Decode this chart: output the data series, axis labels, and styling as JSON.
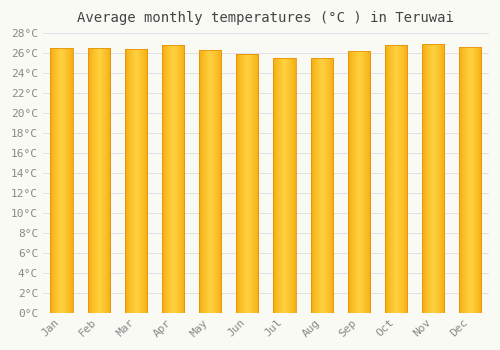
{
  "title": "Average monthly temperatures (°C ) in Teruwai",
  "months": [
    "Jan",
    "Feb",
    "Mar",
    "Apr",
    "May",
    "Jun",
    "Jul",
    "Aug",
    "Sep",
    "Oct",
    "Nov",
    "Dec"
  ],
  "values": [
    26.5,
    26.5,
    26.4,
    26.8,
    26.3,
    25.9,
    25.5,
    25.5,
    26.2,
    26.8,
    26.9,
    26.6
  ],
  "ylim": [
    0,
    28
  ],
  "yticks": [
    0,
    2,
    4,
    6,
    8,
    10,
    12,
    14,
    16,
    18,
    20,
    22,
    24,
    26,
    28
  ],
  "bar_color_edge": "#E8920A",
  "bar_color_center": "#FFD040",
  "bar_color_outer": "#F5A800",
  "background_color": "#FAFAF5",
  "grid_color": "#E0E0E8",
  "title_fontsize": 10,
  "tick_fontsize": 8,
  "bar_width": 0.6
}
